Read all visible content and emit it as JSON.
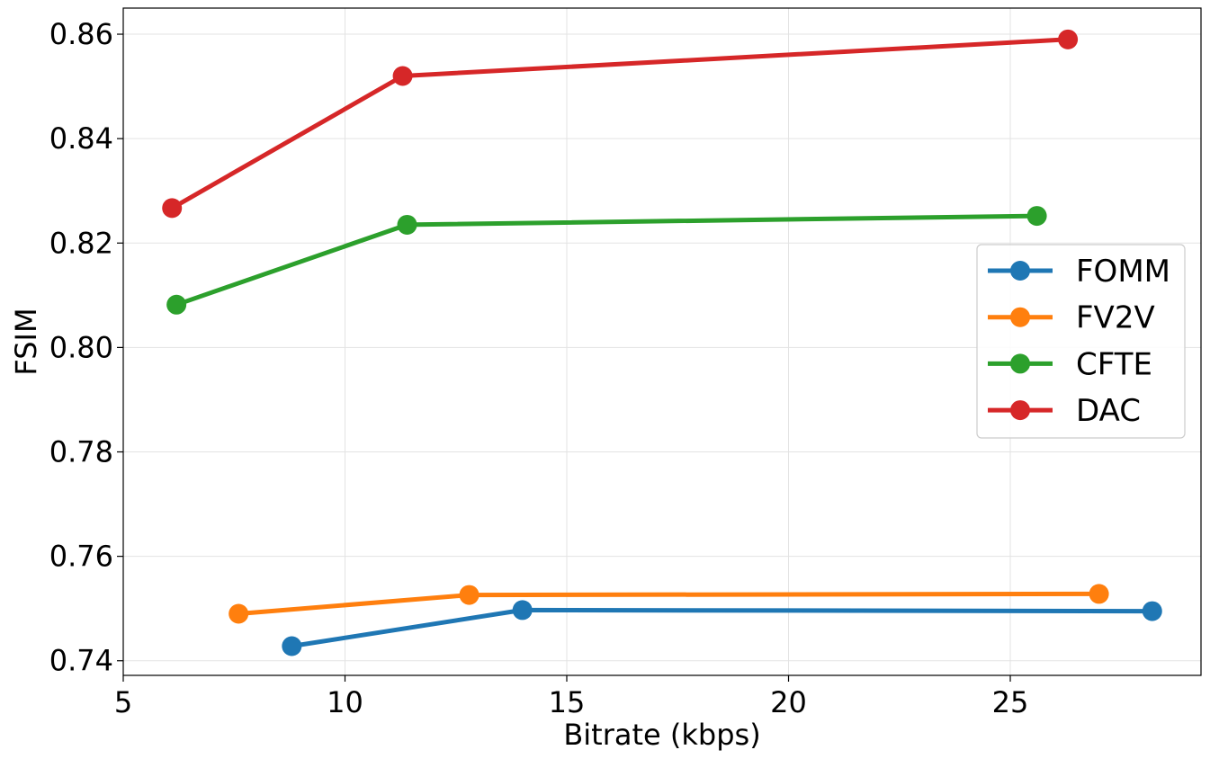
{
  "chart_data": {
    "type": "line",
    "title": "",
    "xlabel": "Bitrate (kbps)",
    "ylabel": "FSIM",
    "xlim": [
      5,
      29.3
    ],
    "ylim": [
      0.7372,
      0.865
    ],
    "xticks": [
      5,
      10,
      15,
      20,
      25
    ],
    "yticks": [
      0.74,
      0.76,
      0.78,
      0.8,
      0.82,
      0.84,
      0.86
    ],
    "xtick_labels": [
      "5",
      "10",
      "15",
      "20",
      "25"
    ],
    "ytick_labels": [
      "0.74",
      "0.76",
      "0.78",
      "0.80",
      "0.82",
      "0.84",
      "0.86"
    ],
    "grid": true,
    "legend_position": "center-right",
    "series": [
      {
        "name": "FOMM",
        "color": "#1f77b4",
        "x": [
          8.8,
          14.0,
          28.2
        ],
        "y": [
          0.7428,
          0.7497,
          0.7495
        ]
      },
      {
        "name": "FV2V",
        "color": "#ff7f0e",
        "x": [
          7.6,
          12.8,
          27.0
        ],
        "y": [
          0.749,
          0.7526,
          0.7528
        ]
      },
      {
        "name": "CFTE",
        "color": "#2ca02c",
        "x": [
          6.2,
          11.4,
          25.6
        ],
        "y": [
          0.8082,
          0.8235,
          0.8252
        ]
      },
      {
        "name": "DAC",
        "color": "#d62728",
        "x": [
          6.1,
          11.3,
          26.3
        ],
        "y": [
          0.8267,
          0.852,
          0.859
        ]
      }
    ]
  }
}
